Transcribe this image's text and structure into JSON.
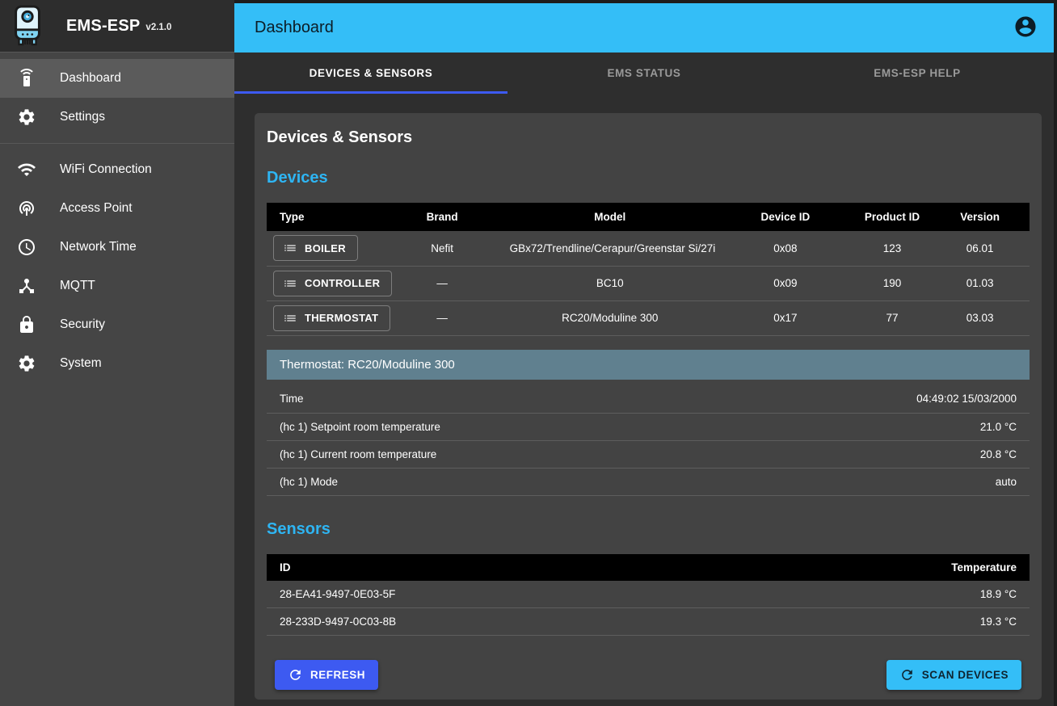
{
  "app": {
    "name": "EMS-ESP",
    "version": "v2.1.0"
  },
  "appbar": {
    "title": "Dashboard",
    "account_icon": "account-circle-icon"
  },
  "sidebar": {
    "items": [
      {
        "label": "Dashboard",
        "icon": "remote-icon",
        "section": 1,
        "active": true
      },
      {
        "label": "Settings",
        "icon": "gear-icon",
        "section": 1,
        "active": false
      },
      {
        "label": "WiFi Connection",
        "icon": "wifi-icon",
        "section": 2,
        "active": false
      },
      {
        "label": "Access Point",
        "icon": "tethering-icon",
        "section": 2,
        "active": false
      },
      {
        "label": "Network Time",
        "icon": "clock-icon",
        "section": 2,
        "active": false
      },
      {
        "label": "MQTT",
        "icon": "hub-icon",
        "section": 2,
        "active": false
      },
      {
        "label": "Security",
        "icon": "lock-icon",
        "section": 2,
        "active": false
      },
      {
        "label": "System",
        "icon": "gear-icon",
        "section": 2,
        "active": false
      }
    ]
  },
  "tabs": [
    {
      "label": "Devices & Sensors",
      "active": true
    },
    {
      "label": "EMS Status",
      "active": false
    },
    {
      "label": "EMS-ESP Help",
      "active": false
    }
  ],
  "content": {
    "card_title": "Devices & Sensors",
    "devices": {
      "heading": "Devices",
      "columns": [
        "Type",
        "Brand",
        "Model",
        "Device ID",
        "Product ID",
        "Version"
      ],
      "rows": [
        {
          "type": "BOILER",
          "brand": "Nefit",
          "model": "GBx72/Trendline/Cerapur/Greenstar Si/27i",
          "device_id": "0x08",
          "product_id": "123",
          "version": "06.01"
        },
        {
          "type": "CONTROLLER",
          "brand": "—",
          "model": "BC10",
          "device_id": "0x09",
          "product_id": "190",
          "version": "01.03"
        },
        {
          "type": "THERMOSTAT",
          "brand": "—",
          "model": "RC20/Moduline 300",
          "device_id": "0x17",
          "product_id": "77",
          "version": "03.03"
        }
      ]
    },
    "device_details": {
      "title": "Thermostat: RC20/Moduline 300",
      "rows": [
        {
          "label": "Time",
          "value": "04:49:02 15/03/2000"
        },
        {
          "label": "(hc 1) Setpoint room temperature",
          "value": "21.0 °C"
        },
        {
          "label": "(hc 1) Current room temperature",
          "value": "20.8 °C"
        },
        {
          "label": "(hc 1) Mode",
          "value": "auto"
        }
      ]
    },
    "sensors": {
      "heading": "Sensors",
      "columns": [
        "ID",
        "Temperature"
      ],
      "rows": [
        {
          "id": "28-EA41-9497-0E03-5F",
          "temperature": "18.9 °C"
        },
        {
          "id": "28-233D-9497-0C03-8B",
          "temperature": "19.3 °C"
        }
      ]
    },
    "actions": {
      "refresh": "REFRESH",
      "scan": "SCAN DEVICES"
    }
  },
  "colors": {
    "appbar": "#34bef7",
    "accent": "#2eb5f3",
    "tab_indicator": "#3d5af1",
    "refresh_button": "#3d5af1",
    "scan_button": "#34bef7",
    "section_bar": "#60808f",
    "table_header": "#000000"
  }
}
